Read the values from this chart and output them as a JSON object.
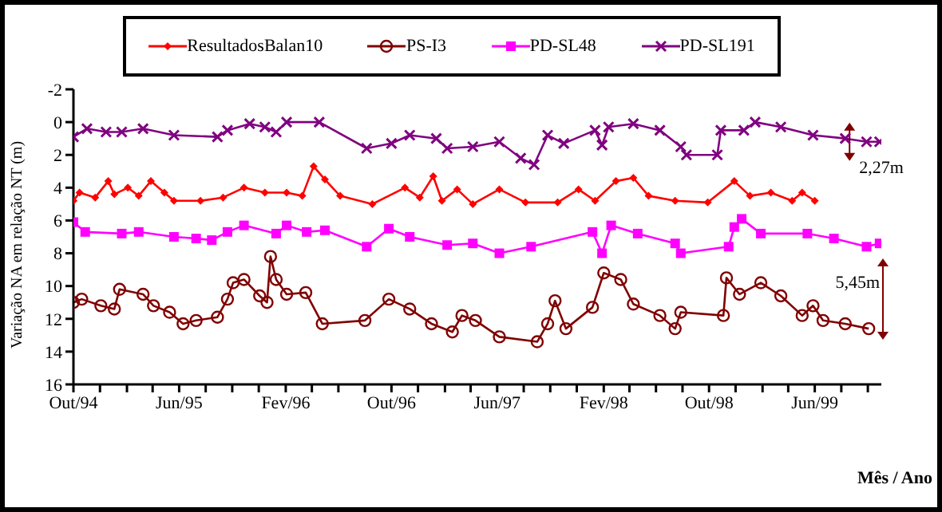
{
  "chart_data": {
    "type": "line",
    "xlabel": "Mês / Ano",
    "ylabel": "Variação NA em relação NT (m)",
    "ylim": [
      16,
      -2
    ],
    "yticks": [
      -2,
      0,
      2,
      4,
      6,
      8,
      10,
      12,
      14,
      16
    ],
    "xlim": [
      "1994-10-01",
      "1999-11-01"
    ],
    "xticks": [
      {
        "value": "1994-10-01",
        "label": "Out/94"
      },
      {
        "value": "1994-12-01",
        "label": null
      },
      {
        "value": "1995-02-01",
        "label": null
      },
      {
        "value": "1995-04-01",
        "label": null
      },
      {
        "value": "1995-06-01",
        "label": "Jun/95"
      },
      {
        "value": "1995-08-01",
        "label": null
      },
      {
        "value": "1995-10-01",
        "label": null
      },
      {
        "value": "1995-12-01",
        "label": null
      },
      {
        "value": "1996-02-01",
        "label": "Fev/96"
      },
      {
        "value": "1996-04-01",
        "label": null
      },
      {
        "value": "1996-06-01",
        "label": null
      },
      {
        "value": "1996-08-01",
        "label": null
      },
      {
        "value": "1996-10-01",
        "label": "Out/96"
      },
      {
        "value": "1996-12-01",
        "label": null
      },
      {
        "value": "1997-02-01",
        "label": null
      },
      {
        "value": "1997-04-01",
        "label": null
      },
      {
        "value": "1997-06-01",
        "label": "Jun/97"
      },
      {
        "value": "1997-08-01",
        "label": null
      },
      {
        "value": "1997-10-01",
        "label": null
      },
      {
        "value": "1997-12-01",
        "label": null
      },
      {
        "value": "1998-02-01",
        "label": "Fev/98"
      },
      {
        "value": "1998-04-01",
        "label": null
      },
      {
        "value": "1998-06-01",
        "label": null
      },
      {
        "value": "1998-08-01",
        "label": null
      },
      {
        "value": "1998-10-01",
        "label": "Out/98"
      },
      {
        "value": "1998-12-01",
        "label": null
      },
      {
        "value": "1999-02-01",
        "label": null
      },
      {
        "value": "1999-04-01",
        "label": null
      },
      {
        "value": "1999-06-01",
        "label": "Jun/99"
      },
      {
        "value": "1999-08-01",
        "label": null
      },
      {
        "value": "1999-10-01",
        "label": null
      }
    ],
    "legend": "top",
    "line_style": "solid",
    "series": [
      {
        "name": "ResultadosBalan10",
        "color": "#ff0000",
        "marker": "diamond",
        "x": [
          "1994-10-01",
          "1994-10-15",
          "1994-11-20",
          "1994-12-20",
          "1995-01-03",
          "1995-02-03",
          "1995-02-28",
          "1995-03-28",
          "1995-04-28",
          "1995-05-20",
          "1995-07-20",
          "1995-09-10",
          "1995-10-28",
          "1995-12-15",
          "1996-02-03",
          "1996-03-10",
          "1996-04-05",
          "1996-05-01",
          "1996-06-05",
          "1996-08-18",
          "1996-11-01",
          "1996-12-05",
          "1997-01-05",
          "1997-01-25",
          "1997-03-01",
          "1997-04-06",
          "1997-06-06",
          "1997-08-05",
          "1997-10-18",
          "1997-12-05",
          "1998-01-12",
          "1998-03-01",
          "1998-04-10",
          "1998-05-15",
          "1998-07-15",
          "1998-09-28",
          "1998-11-28",
          "1999-01-03",
          "1999-02-20",
          "1999-04-10",
          "1999-05-03",
          "1999-06-01"
        ],
        "values": [
          4.8,
          4.3,
          4.6,
          3.6,
          4.4,
          4.0,
          4.5,
          3.6,
          4.3,
          4.8,
          4.8,
          4.6,
          4.0,
          4.3,
          4.3,
          4.5,
          2.7,
          3.5,
          4.5,
          5.0,
          4.0,
          4.6,
          3.3,
          4.8,
          4.1,
          5.0,
          4.1,
          4.9,
          4.9,
          4.1,
          4.8,
          3.6,
          3.4,
          4.5,
          4.8,
          4.9,
          3.6,
          4.5,
          4.3,
          4.8,
          4.3,
          4.8
        ]
      },
      {
        "name": "PS-I3",
        "color": "#800000",
        "marker": "circle",
        "x": [
          "1994-10-01",
          "1994-10-20",
          "1994-12-03",
          "1995-01-03",
          "1995-01-15",
          "1995-03-10",
          "1995-04-03",
          "1995-05-10",
          "1995-06-10",
          "1995-07-10",
          "1995-08-28",
          "1995-09-20",
          "1995-10-03",
          "1995-10-28",
          "1995-12-03",
          "1995-12-20",
          "1995-12-28",
          "1996-01-10",
          "1996-02-03",
          "1996-03-18",
          "1996-04-25",
          "1996-08-01",
          "1996-09-25",
          "1996-11-12",
          "1997-01-01",
          "1997-02-18",
          "1997-03-12",
          "1997-04-12",
          "1997-06-06",
          "1997-09-01",
          "1997-09-25",
          "1997-10-12",
          "1997-11-06",
          "1998-01-06",
          "1998-02-01",
          "1998-03-12",
          "1998-04-10",
          "1998-06-10",
          "1998-07-15",
          "1998-07-28",
          "1998-11-03",
          "1998-11-10",
          "1998-12-10",
          "1999-01-28",
          "1999-03-15",
          "1999-05-03",
          "1999-05-28",
          "1999-06-20",
          "1999-08-10",
          "1999-10-03"
        ],
        "values": [
          11.0,
          10.8,
          11.2,
          11.4,
          10.2,
          10.5,
          11.2,
          11.6,
          12.3,
          12.1,
          11.9,
          10.8,
          9.8,
          9.6,
          10.6,
          11.0,
          8.2,
          9.6,
          10.5,
          10.4,
          12.3,
          12.1,
          10.8,
          11.4,
          12.3,
          12.8,
          11.8,
          12.1,
          13.1,
          13.4,
          12.3,
          10.9,
          12.6,
          11.3,
          9.2,
          9.6,
          11.1,
          11.8,
          12.6,
          11.6,
          11.8,
          9.5,
          10.5,
          9.8,
          10.6,
          11.8,
          11.2,
          12.1,
          12.3,
          12.6
        ]
      },
      {
        "name": "PD-SL48",
        "color": "#ff00ff",
        "marker": "square",
        "x": [
          "1994-10-01",
          "1994-10-28",
          "1995-01-20",
          "1995-02-28",
          "1995-05-20",
          "1995-07-10",
          "1995-08-15",
          "1995-09-20",
          "1995-10-28",
          "1996-01-10",
          "1996-02-03",
          "1996-03-20",
          "1996-05-01",
          "1996-08-05",
          "1996-09-25",
          "1996-11-12",
          "1997-02-06",
          "1997-04-06",
          "1997-06-06",
          "1997-08-18",
          "1998-01-06",
          "1998-01-28",
          "1998-02-18",
          "1998-04-20",
          "1998-07-15",
          "1998-07-28",
          "1998-11-15",
          "1998-11-28",
          "1998-12-15",
          "1999-01-28",
          "1999-05-15",
          "1999-07-15",
          "1999-09-28",
          "1999-10-28"
        ],
        "values": [
          6.1,
          6.7,
          6.8,
          6.7,
          7.0,
          7.1,
          7.2,
          6.7,
          6.3,
          6.8,
          6.3,
          6.7,
          6.6,
          7.6,
          6.5,
          7.0,
          7.5,
          7.4,
          8.0,
          7.6,
          6.7,
          8.0,
          6.3,
          6.8,
          7.4,
          8.0,
          7.6,
          6.4,
          5.9,
          6.8,
          6.8,
          7.1,
          7.6,
          7.4
        ]
      },
      {
        "name": "PD-SL191",
        "color": "#800080",
        "marker": "cross",
        "x": [
          "1994-10-01",
          "1994-11-01",
          "1994-12-15",
          "1995-01-20",
          "1995-03-10",
          "1995-05-20",
          "1995-08-28",
          "1995-09-20",
          "1995-11-10",
          "1995-12-15",
          "1996-01-10",
          "1996-02-03",
          "1996-04-18",
          "1996-08-05",
          "1996-10-01",
          "1996-11-12",
          "1997-01-12",
          "1997-02-06",
          "1997-04-06",
          "1997-06-06",
          "1997-07-25",
          "1997-08-25",
          "1997-09-25",
          "1997-11-01",
          "1998-01-12",
          "1998-01-28",
          "1998-02-12",
          "1998-04-10",
          "1998-06-10",
          "1998-07-28",
          "1998-08-10",
          "1998-10-20",
          "1998-10-28",
          "1998-12-20",
          "1999-01-15",
          "1999-03-15",
          "1999-05-28",
          "1999-08-10",
          "1999-09-28",
          "1999-10-28"
        ],
        "values": [
          0.9,
          0.4,
          0.6,
          0.6,
          0.4,
          0.8,
          0.9,
          0.5,
          0.1,
          0.3,
          0.6,
          0,
          0,
          1.6,
          1.3,
          0.8,
          1.0,
          1.6,
          1.5,
          1.2,
          2.2,
          2.6,
          0.8,
          1.3,
          0.5,
          1.4,
          0.3,
          0.1,
          0.5,
          1.5,
          2.0,
          2.0,
          0.5,
          0.5,
          0,
          0.3,
          0.8,
          1.0,
          1.2,
          1.2
        ]
      }
    ],
    "annotations": [
      {
        "text": "2,27m",
        "x": "1999-08-20",
        "y": 1.2
      },
      "5,45m"
    ]
  }
}
